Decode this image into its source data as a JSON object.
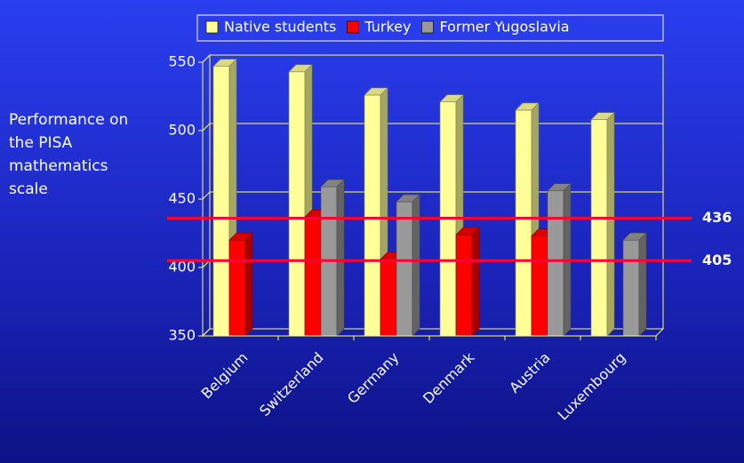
{
  "chart_data": {
    "type": "bar",
    "ylabel": "Performance on the PISA mathematics scale",
    "categories": [
      "Belgium",
      "Switzerland",
      "Germany",
      "Denmark",
      "Austria",
      "Luxembourg"
    ],
    "series": [
      {
        "name": "Native students",
        "color": "#ffff99",
        "values": [
          547,
          543,
          526,
          521,
          515,
          508
        ]
      },
      {
        "name": "Turkey",
        "color": "#ff0000",
        "values": [
          420,
          437,
          406,
          424,
          423,
          null
        ]
      },
      {
        "name": "Former Yugoslavia",
        "color": "#999999",
        "values": [
          null,
          459,
          448,
          null,
          456,
          420
        ]
      }
    ],
    "ylim": [
      350,
      550
    ],
    "yticks": [
      350,
      400,
      450,
      500,
      550
    ],
    "grid": true,
    "reference_lines": [
      436,
      405
    ],
    "reference_line_color": "#ff0033",
    "legend": "top"
  }
}
